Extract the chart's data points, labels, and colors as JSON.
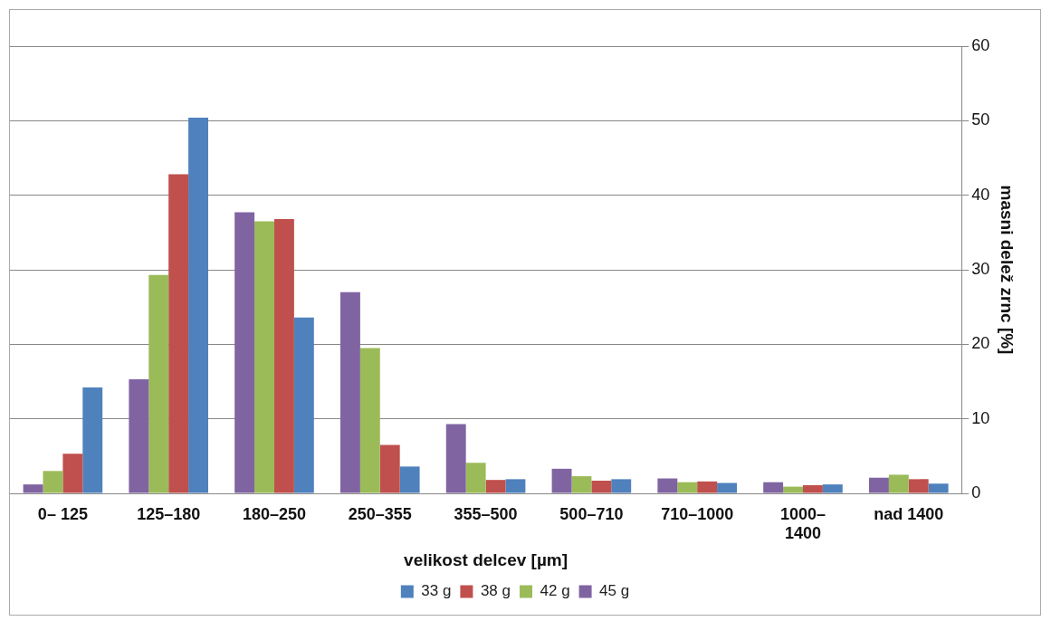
{
  "chart_data": {
    "type": "bar",
    "xlabel": "velikost delcev [µm]",
    "ylabel": "masni delež zrnc [%]",
    "categories": [
      "0– 125",
      "125–180",
      "180–250",
      "250–355",
      "355–500",
      "500–710",
      "710–1000",
      "1000–1400",
      "nad 1400"
    ],
    "series": [
      {
        "name": "45 g",
        "color": "#8064a2",
        "values": [
          1.2,
          15.3,
          37.7,
          27.0,
          9.3,
          3.3,
          2.0,
          1.5,
          2.1
        ]
      },
      {
        "name": "42 g",
        "color": "#9bbb59",
        "values": [
          3.0,
          29.3,
          36.5,
          19.5,
          4.1,
          2.3,
          1.5,
          0.9,
          2.5
        ]
      },
      {
        "name": "38 g",
        "color": "#c0504d",
        "values": [
          5.3,
          42.8,
          36.8,
          6.5,
          1.8,
          1.7,
          1.6,
          1.1,
          1.9
        ]
      },
      {
        "name": "33 g",
        "color": "#4f81bd",
        "values": [
          14.2,
          50.4,
          23.6,
          3.6,
          1.9,
          1.9,
          1.4,
          1.2,
          1.3
        ]
      }
    ],
    "ylim": [
      0,
      60
    ],
    "yticks": [
      0,
      10,
      20,
      30,
      40,
      50,
      60
    ],
    "grid": "y",
    "legend": "bottom"
  }
}
